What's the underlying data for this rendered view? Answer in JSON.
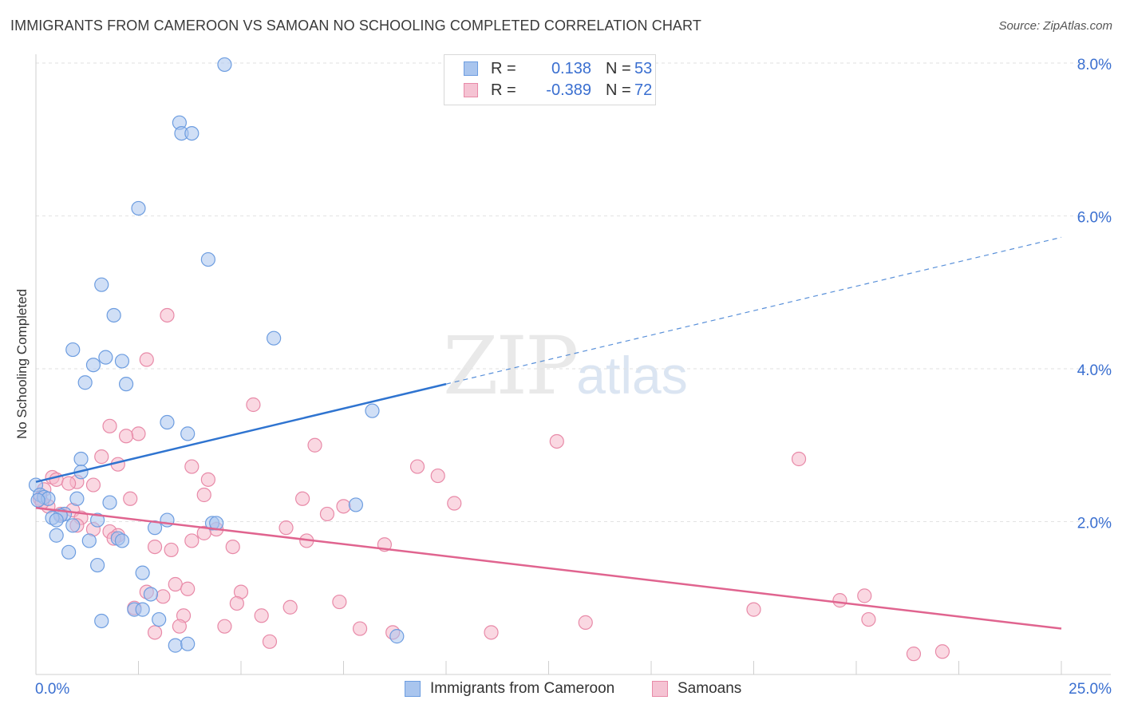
{
  "title": "IMMIGRANTS FROM CAMEROON VS SAMOAN NO SCHOOLING COMPLETED CORRELATION CHART",
  "source": "Source: ZipAtlas.com",
  "watermark": {
    "zip": "ZIP",
    "atlas": "atlas"
  },
  "legend": {
    "rows": [
      {
        "r_label": "R =",
        "r_value": "0.138",
        "n_label": "N =",
        "n_value": "53"
      },
      {
        "r_label": "R =",
        "r_value": "-0.389",
        "n_label": "N =",
        "n_value": "72"
      }
    ]
  },
  "bottom_legend": [
    "Immigrants from Cameroon",
    "Samoans"
  ],
  "colors": {
    "blue_fill": "#a9c5ee",
    "blue_stroke": "#6d9de0",
    "blue_line": "#2f74d0",
    "pink_fill": "#f5b8cb",
    "pink_stroke": "#e88aa8",
    "pink_line": "#e0648f",
    "tick_label": "#3a6fd0",
    "grid": "#e2e2e2"
  },
  "chart_data": {
    "type": "scatter",
    "title": "IMMIGRANTS FROM CAMEROON VS SAMOAN NO SCHOOLING COMPLETED CORRELATION CHART",
    "xlabel": "",
    "ylabel": "No Schooling Completed",
    "xlim": [
      0,
      25
    ],
    "ylim": [
      0,
      8.3
    ],
    "x_tick_labels": [
      "0.0%",
      "25.0%"
    ],
    "y_ticks": [
      2,
      4,
      6,
      8
    ],
    "y_tick_labels": [
      "2.0%",
      "4.0%",
      "6.0%",
      "8.0%"
    ],
    "grid": "horizontal dashed",
    "legend_position": "top-center",
    "series": [
      {
        "name": "Immigrants from Cameroon",
        "R": 0.138,
        "N": 53,
        "trend": {
          "x0": 0,
          "y0": 2.52,
          "x_solid_end": 10,
          "y_solid_end": 3.8,
          "x1": 25,
          "y1": 5.72
        },
        "points": [
          [
            4.6,
            7.98
          ],
          [
            3.5,
            7.22
          ],
          [
            3.55,
            7.08
          ],
          [
            3.8,
            7.08
          ],
          [
            2.5,
            6.1
          ],
          [
            4.2,
            5.43
          ],
          [
            1.6,
            5.1
          ],
          [
            1.9,
            4.7
          ],
          [
            5.8,
            4.4
          ],
          [
            0.9,
            4.25
          ],
          [
            1.7,
            4.15
          ],
          [
            2.1,
            4.1
          ],
          [
            1.4,
            4.05
          ],
          [
            1.2,
            3.82
          ],
          [
            2.2,
            3.8
          ],
          [
            8.2,
            3.45
          ],
          [
            3.2,
            3.3
          ],
          [
            3.7,
            3.15
          ],
          [
            1.1,
            2.82
          ],
          [
            1.1,
            2.65
          ],
          [
            0.0,
            2.48
          ],
          [
            0.1,
            2.35
          ],
          [
            0.2,
            2.32
          ],
          [
            0.3,
            2.3
          ],
          [
            1.0,
            2.3
          ],
          [
            1.8,
            2.25
          ],
          [
            7.8,
            2.22
          ],
          [
            0.7,
            2.1
          ],
          [
            0.6,
            2.08
          ],
          [
            0.4,
            2.05
          ],
          [
            0.5,
            2.02
          ],
          [
            1.5,
            2.02
          ],
          [
            3.2,
            2.02
          ],
          [
            4.3,
            1.98
          ],
          [
            4.4,
            1.98
          ],
          [
            0.9,
            1.95
          ],
          [
            2.9,
            1.92
          ],
          [
            0.5,
            1.82
          ],
          [
            2.0,
            1.78
          ],
          [
            1.3,
            1.75
          ],
          [
            2.1,
            1.75
          ],
          [
            0.8,
            1.6
          ],
          [
            1.5,
            1.43
          ],
          [
            2.6,
            1.33
          ],
          [
            2.8,
            1.05
          ],
          [
            2.4,
            0.85
          ],
          [
            2.6,
            0.85
          ],
          [
            3.0,
            0.72
          ],
          [
            1.6,
            0.7
          ],
          [
            8.8,
            0.5
          ],
          [
            3.4,
            0.38
          ],
          [
            3.7,
            0.4
          ],
          [
            0.05,
            2.28
          ]
        ]
      },
      {
        "name": "Samoans",
        "R": -0.389,
        "N": 72,
        "trend": {
          "x0": 0,
          "y0": 2.18,
          "x1": 25,
          "y1": 0.6
        },
        "points": [
          [
            3.2,
            4.7
          ],
          [
            2.7,
            4.12
          ],
          [
            5.3,
            3.53
          ],
          [
            1.8,
            3.25
          ],
          [
            2.5,
            3.15
          ],
          [
            2.2,
            3.12
          ],
          [
            12.7,
            3.05
          ],
          [
            6.8,
            3.0
          ],
          [
            18.6,
            2.82
          ],
          [
            1.6,
            2.85
          ],
          [
            2.0,
            2.75
          ],
          [
            3.8,
            2.72
          ],
          [
            9.3,
            2.72
          ],
          [
            9.8,
            2.6
          ],
          [
            0.4,
            2.58
          ],
          [
            0.5,
            2.55
          ],
          [
            4.2,
            2.55
          ],
          [
            1.0,
            2.52
          ],
          [
            0.8,
            2.5
          ],
          [
            1.4,
            2.48
          ],
          [
            0.2,
            2.42
          ],
          [
            4.1,
            2.35
          ],
          [
            6.5,
            2.3
          ],
          [
            2.3,
            2.3
          ],
          [
            10.2,
            2.24
          ],
          [
            7.5,
            2.2
          ],
          [
            0.3,
            2.2
          ],
          [
            0.9,
            2.15
          ],
          [
            7.1,
            2.1
          ],
          [
            0.6,
            2.1
          ],
          [
            1.1,
            2.05
          ],
          [
            1.4,
            1.9
          ],
          [
            1.8,
            1.87
          ],
          [
            1.0,
            1.95
          ],
          [
            6.1,
            1.92
          ],
          [
            4.4,
            1.9
          ],
          [
            4.1,
            1.85
          ],
          [
            2.0,
            1.82
          ],
          [
            3.8,
            1.75
          ],
          [
            6.6,
            1.75
          ],
          [
            8.5,
            1.7
          ],
          [
            4.8,
            1.67
          ],
          [
            2.9,
            1.67
          ],
          [
            3.3,
            1.63
          ],
          [
            3.4,
            1.18
          ],
          [
            3.7,
            1.12
          ],
          [
            2.7,
            1.08
          ],
          [
            5.0,
            1.08
          ],
          [
            3.1,
            1.02
          ],
          [
            4.9,
            0.93
          ],
          [
            7.4,
            0.95
          ],
          [
            19.6,
            0.97
          ],
          [
            20.2,
            1.03
          ],
          [
            2.4,
            0.87
          ],
          [
            6.2,
            0.88
          ],
          [
            17.5,
            0.85
          ],
          [
            5.5,
            0.77
          ],
          [
            3.6,
            0.77
          ],
          [
            20.3,
            0.72
          ],
          [
            13.4,
            0.68
          ],
          [
            3.5,
            0.63
          ],
          [
            4.6,
            0.63
          ],
          [
            7.9,
            0.6
          ],
          [
            2.9,
            0.55
          ],
          [
            8.7,
            0.55
          ],
          [
            11.1,
            0.55
          ],
          [
            5.7,
            0.43
          ],
          [
            21.4,
            0.27
          ],
          [
            22.1,
            0.3
          ],
          [
            0.1,
            2.3
          ],
          [
            0.15,
            2.25
          ],
          [
            1.9,
            1.78
          ]
        ]
      }
    ]
  }
}
